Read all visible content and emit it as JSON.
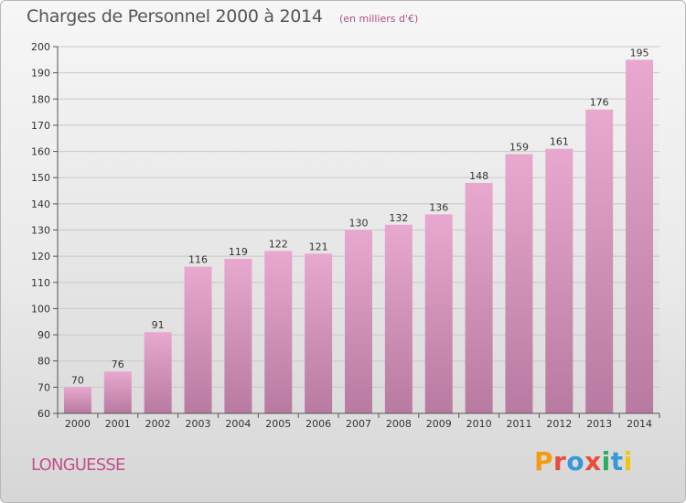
{
  "header": {
    "title": "Charges de Personnel 2000 à 2014",
    "subtitle": "(en milliers d'€)"
  },
  "footer": {
    "commune": "LONGUESSE",
    "logo_text": "Proxiti",
    "logo_colors": [
      "#f39c12",
      "#e74c3c",
      "#3498db",
      "#e74c3c",
      "#27ae60",
      "#3498db",
      "#f1c40f"
    ]
  },
  "chart_data": {
    "type": "bar",
    "title": "Charges de Personnel 2000 à 2014",
    "subtitle": "(en milliers d'€)",
    "categories": [
      "2000",
      "2001",
      "2002",
      "2003",
      "2004",
      "2005",
      "2006",
      "2007",
      "2008",
      "2009",
      "2010",
      "2011",
      "2012",
      "2013",
      "2014"
    ],
    "values": [
      70,
      76,
      91,
      116,
      119,
      122,
      121,
      130,
      132,
      136,
      148,
      159,
      161,
      176,
      195
    ],
    "ylim": [
      60,
      200
    ],
    "yticks": [
      60,
      70,
      80,
      90,
      100,
      110,
      120,
      130,
      140,
      150,
      160,
      170,
      180,
      190,
      200
    ],
    "grid": true,
    "data_labels": true,
    "bar_color_top": "#e8a8cf",
    "bar_color_bottom": "#b87aa0"
  }
}
